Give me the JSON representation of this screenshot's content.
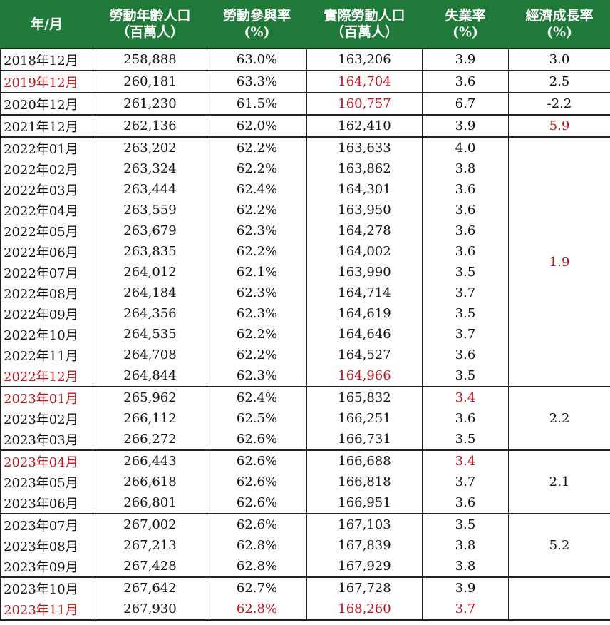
{
  "header": {
    "month": [
      "年/月"
    ],
    "labor_age_pop": [
      "勞動年齡人口",
      "（百萬人）"
    ],
    "participation": [
      "勞動參與率",
      "(%)"
    ],
    "actual_labor": [
      "實際勞動人口",
      "（百萬人）"
    ],
    "unemployment": [
      "失業率",
      "(%)"
    ],
    "gdp_growth": [
      "經濟成長率",
      "(%)"
    ]
  },
  "highlight_color": "#c0141c",
  "header_bg": "#1f7a3a",
  "rows": [
    {
      "month": "2018年12月",
      "pop": "258,888",
      "part": "63.0%",
      "labor": "163,206",
      "unemp": "3.9",
      "gdp": "3.0",
      "red": []
    },
    {
      "month": "2019年12月",
      "pop": "260,181",
      "part": "63.3%",
      "labor": "164,704",
      "unemp": "3.6",
      "gdp": "2.5",
      "red": [
        "month",
        "labor"
      ]
    },
    {
      "month": "2020年12月",
      "pop": "261,230",
      "part": "61.5%",
      "labor": "160,757",
      "unemp": "6.7",
      "gdp": "-2.2",
      "red": [
        "labor"
      ]
    },
    {
      "month": "2021年12月",
      "pop": "262,136",
      "part": "62.0%",
      "labor": "162,410",
      "unemp": "3.9",
      "gdp": "5.9",
      "red": [
        "gdp"
      ]
    },
    {
      "month": "2022年01月",
      "pop": "263,202",
      "part": "62.2%",
      "labor": "163,633",
      "unemp": "4.0",
      "gdp": "1.9",
      "gdp_span": 12,
      "red": [
        "gdp"
      ]
    },
    {
      "month": "2022年02月",
      "pop": "263,324",
      "part": "62.2%",
      "labor": "163,862",
      "unemp": "3.8",
      "red": []
    },
    {
      "month": "2022年03月",
      "pop": "263,444",
      "part": "62.4%",
      "labor": "164,301",
      "unemp": "3.6",
      "red": []
    },
    {
      "month": "2022年04月",
      "pop": "263,559",
      "part": "62.2%",
      "labor": "163,950",
      "unemp": "3.6",
      "red": []
    },
    {
      "month": "2022年05月",
      "pop": "263,679",
      "part": "62.3%",
      "labor": "164,278",
      "unemp": "3.6",
      "red": []
    },
    {
      "month": "2022年06月",
      "pop": "263,835",
      "part": "62.2%",
      "labor": "164,002",
      "unemp": "3.6",
      "red": []
    },
    {
      "month": "2022年07月",
      "pop": "264,012",
      "part": "62.1%",
      "labor": "163,990",
      "unemp": "3.5",
      "red": []
    },
    {
      "month": "2022年08月",
      "pop": "264,184",
      "part": "62.3%",
      "labor": "164,714",
      "unemp": "3.7",
      "red": []
    },
    {
      "month": "2022年09月",
      "pop": "264,356",
      "part": "62.3%",
      "labor": "164,619",
      "unemp": "3.5",
      "red": []
    },
    {
      "month": "2022年10月",
      "pop": "264,535",
      "part": "62.2%",
      "labor": "164,646",
      "unemp": "3.7",
      "red": []
    },
    {
      "month": "2022年11月",
      "pop": "264,708",
      "part": "62.2%",
      "labor": "164,527",
      "unemp": "3.6",
      "red": []
    },
    {
      "month": "2022年12月",
      "pop": "264,844",
      "part": "62.3%",
      "labor": "164,966",
      "unemp": "3.5",
      "red": [
        "month",
        "labor"
      ]
    },
    {
      "month": "2023年01月",
      "pop": "265,962",
      "part": "62.4%",
      "labor": "165,832",
      "unemp": "3.4",
      "gdp": "2.2",
      "gdp_span": 3,
      "red": [
        "month",
        "unemp"
      ]
    },
    {
      "month": "2023年02月",
      "pop": "266,112",
      "part": "62.5%",
      "labor": "166,251",
      "unemp": "3.6",
      "red": []
    },
    {
      "month": "2023年03月",
      "pop": "266,272",
      "part": "62.6%",
      "labor": "166,731",
      "unemp": "3.5",
      "red": []
    },
    {
      "month": "2023年04月",
      "pop": "266,443",
      "part": "62.6%",
      "labor": "166,688",
      "unemp": "3.4",
      "gdp": "2.1",
      "gdp_span": 3,
      "red": [
        "month",
        "unemp"
      ]
    },
    {
      "month": "2023年05月",
      "pop": "266,618",
      "part": "62.6%",
      "labor": "166,818",
      "unemp": "3.7",
      "red": []
    },
    {
      "month": "2023年06月",
      "pop": "266,801",
      "part": "62.6%",
      "labor": "166,951",
      "unemp": "3.6",
      "red": []
    },
    {
      "month": "2023年07月",
      "pop": "267,002",
      "part": "62.6%",
      "labor": "167,103",
      "unemp": "3.5",
      "gdp": "5.2",
      "gdp_span": 3,
      "red": []
    },
    {
      "month": "2023年08月",
      "pop": "267,213",
      "part": "62.8%",
      "labor": "167,839",
      "unemp": "3.8",
      "red": []
    },
    {
      "month": "2023年09月",
      "pop": "267,428",
      "part": "62.8%",
      "labor": "167,929",
      "unemp": "3.8",
      "red": []
    },
    {
      "month": "2023年10月",
      "pop": "267,642",
      "part": "62.7%",
      "labor": "167,728",
      "unemp": "3.9",
      "gdp": "",
      "gdp_span": 2,
      "red": []
    },
    {
      "month": "2023年11月",
      "pop": "267,930",
      "part": "62.8%",
      "labor": "168,260",
      "unemp": "3.7",
      "red": [
        "month",
        "part",
        "labor",
        "unemp"
      ]
    }
  ]
}
